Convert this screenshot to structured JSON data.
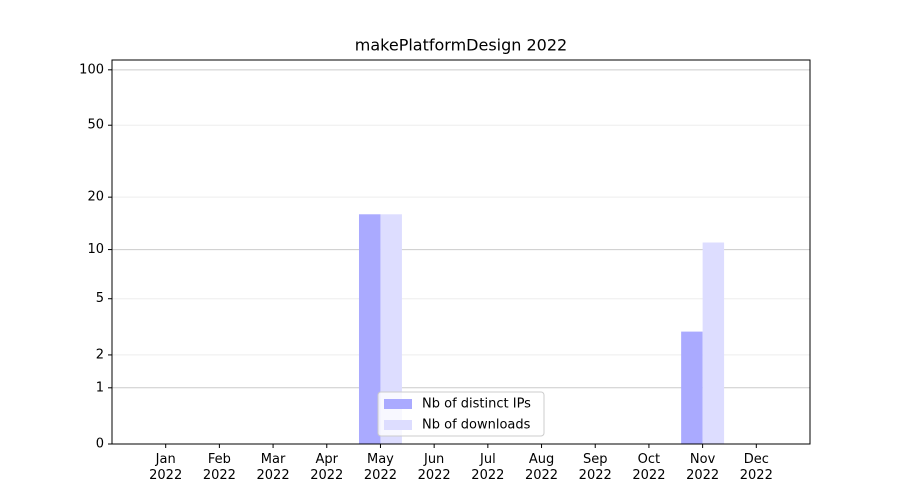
{
  "chart_data": {
    "type": "bar",
    "title": "makePlatformDesign 2022",
    "categories": [
      "Jan\n2022",
      "Feb\n2022",
      "Mar\n2022",
      "Apr\n2022",
      "May\n2022",
      "Jun\n2022",
      "Jul\n2022",
      "Aug\n2022",
      "Sep\n2022",
      "Oct\n2022",
      "Nov\n2022",
      "Dec\n2022"
    ],
    "series": [
      {
        "name": "Nb of distinct IPs",
        "color": "#aaaaff",
        "values": [
          0,
          0,
          0,
          0,
          16,
          0,
          0,
          0,
          0,
          0,
          3,
          0
        ]
      },
      {
        "name": "Nb of downloads",
        "color": "#ddddff",
        "values": [
          0,
          0,
          0,
          0,
          16,
          0,
          0,
          0,
          0,
          0,
          11,
          0
        ]
      }
    ],
    "yscale": "log1p",
    "ylim": [
      0,
      113
    ],
    "yticks": [
      0,
      1,
      2,
      5,
      10,
      20,
      50,
      100
    ],
    "grid": true,
    "legend": "lower center"
  }
}
